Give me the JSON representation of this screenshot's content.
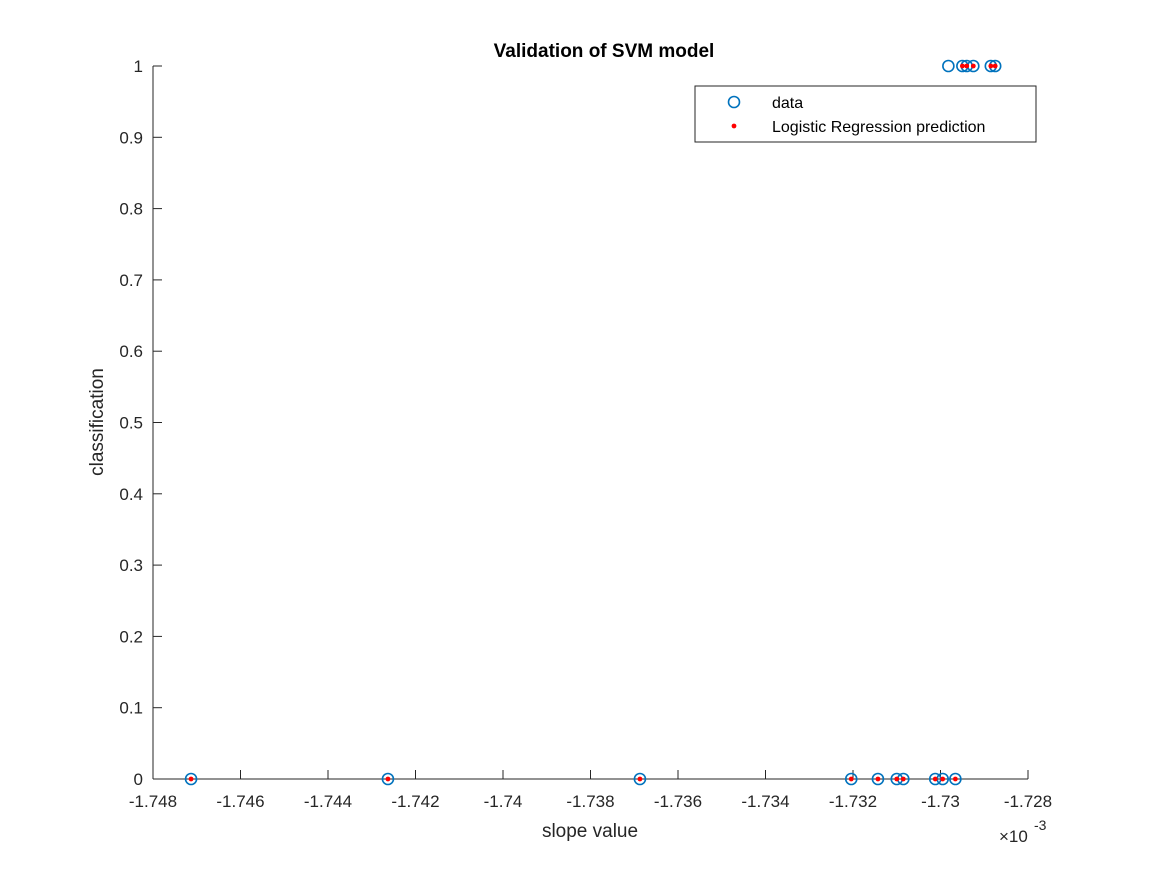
{
  "chart_data": {
    "type": "scatter",
    "title": "Validation of SVM model",
    "xlabel": "slope value",
    "ylabel": "classification",
    "x_exponent_label": "×10",
    "x_exponent_power": "-3",
    "xlim": [
      -1.748,
      -1.728
    ],
    "ylim": [
      0,
      1
    ],
    "x_ticks": [
      -1.748,
      -1.746,
      -1.744,
      -1.742,
      -1.74,
      -1.738,
      -1.736,
      -1.734,
      -1.732,
      -1.73,
      -1.728
    ],
    "x_tick_labels": [
      "-1.748",
      "-1.746",
      "-1.744",
      "-1.742",
      "-1.74",
      "-1.738",
      "-1.736",
      "-1.734",
      "-1.732",
      "-1.73",
      "-1.728"
    ],
    "y_ticks": [
      0,
      0.1,
      0.2,
      0.3,
      0.4,
      0.5,
      0.6,
      0.7,
      0.8,
      0.9,
      1
    ],
    "y_tick_labels": [
      "0",
      "0.1",
      "0.2",
      "0.3",
      "0.4",
      "0.5",
      "0.6",
      "0.7",
      "0.8",
      "0.9",
      "1"
    ],
    "grid": false,
    "legend_position": "top-right",
    "series": [
      {
        "name": "data",
        "marker": "circle-open",
        "color": "#0072BD",
        "points": [
          {
            "x": -1.74713,
            "y": 0
          },
          {
            "x": -1.74263,
            "y": 0
          },
          {
            "x": -1.73687,
            "y": 0
          },
          {
            "x": -1.73204,
            "y": 0
          },
          {
            "x": -1.73143,
            "y": 0
          },
          {
            "x": -1.731,
            "y": 0
          },
          {
            "x": -1.73085,
            "y": 0
          },
          {
            "x": -1.73012,
            "y": 0
          },
          {
            "x": -1.72995,
            "y": 0
          },
          {
            "x": -1.72966,
            "y": 0
          },
          {
            "x": -1.72982,
            "y": 1
          },
          {
            "x": -1.7295,
            "y": 1
          },
          {
            "x": -1.7294,
            "y": 1
          },
          {
            "x": -1.72925,
            "y": 1
          },
          {
            "x": -1.72885,
            "y": 1
          },
          {
            "x": -1.72875,
            "y": 1
          }
        ]
      },
      {
        "name": "Logistic Regression prediction",
        "marker": "dot",
        "color": "#FF0000",
        "points": [
          {
            "x": -1.74713,
            "y": 0
          },
          {
            "x": -1.74263,
            "y": 0
          },
          {
            "x": -1.73687,
            "y": 0
          },
          {
            "x": -1.73204,
            "y": 0
          },
          {
            "x": -1.73143,
            "y": 0
          },
          {
            "x": -1.731,
            "y": 0
          },
          {
            "x": -1.73085,
            "y": 0
          },
          {
            "x": -1.73012,
            "y": 0
          },
          {
            "x": -1.72995,
            "y": 0
          },
          {
            "x": -1.72966,
            "y": 0
          },
          {
            "x": -1.7295,
            "y": 1
          },
          {
            "x": -1.7294,
            "y": 1
          },
          {
            "x": -1.72925,
            "y": 1
          },
          {
            "x": -1.72885,
            "y": 1
          },
          {
            "x": -1.72875,
            "y": 1
          }
        ]
      }
    ]
  }
}
